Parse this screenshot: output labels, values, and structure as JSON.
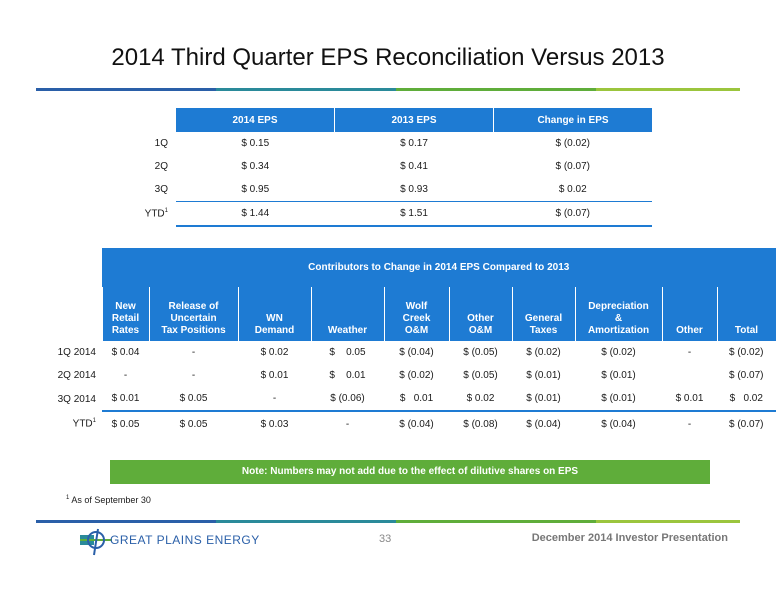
{
  "title": "2014 Third Quarter EPS Reconciliation Versus 2013",
  "eps_table": {
    "headers": [
      "2014 EPS",
      "2013 EPS",
      "Change in EPS"
    ],
    "rows": [
      {
        "label": "1Q",
        "eps2014": "$ 0.15",
        "eps2013": "$ 0.17",
        "change": "$ (0.02)"
      },
      {
        "label": "2Q",
        "eps2014": "$ 0.34",
        "eps2013": "$ 0.41",
        "change": "$ (0.07)"
      },
      {
        "label": "3Q",
        "eps2014": "$ 0.95",
        "eps2013": "$ 0.93",
        "change": "$ 0.02"
      },
      {
        "label": "YTD",
        "sup": "1",
        "eps2014": "$ 1.44",
        "eps2013": "$ 1.51",
        "change": "$ (0.07)"
      }
    ]
  },
  "contrib_table": {
    "title": "Contributors to Change in 2014 EPS Compared to 2013",
    "columns": [
      [
        "New",
        "Retail",
        "Rates"
      ],
      [
        "Release of",
        "Uncertain",
        "Tax Positions"
      ],
      [
        "WN",
        "Demand"
      ],
      [
        "Weather"
      ],
      [
        "Wolf",
        "Creek",
        "O&M"
      ],
      [
        "Other",
        "O&M"
      ],
      [
        "General",
        "Taxes"
      ],
      [
        "Depreciation",
        "&",
        "Amortization"
      ],
      [
        "Other"
      ],
      [
        "Total"
      ]
    ],
    "rows": [
      {
        "label": "1Q 2014",
        "values": [
          "$ 0.04",
          "-",
          "$ 0.02",
          "$    0.05",
          "$ (0.04)",
          "$ (0.05)",
          "$ (0.02)",
          "$ (0.02)",
          "-",
          "$ (0.02)"
        ]
      },
      {
        "label": "2Q 2014",
        "values": [
          "-",
          "-",
          "$ 0.01",
          "$    0.01",
          "$ (0.02)",
          "$ (0.05)",
          "$ (0.01)",
          "$ (0.01)",
          "",
          "$ (0.07)"
        ]
      },
      {
        "label": "3Q 2014",
        "values": [
          "$ 0.01",
          "$ 0.05",
          "-",
          "$ (0.06)",
          "$   0.01",
          "$ 0.02",
          "$ (0.01)",
          "$ (0.01)",
          "$ 0.01",
          "$   0.02"
        ]
      },
      {
        "label": "YTD",
        "sup": "1",
        "values": [
          "$ 0.05",
          "$ 0.05",
          "$ 0.03",
          "-",
          "$ (0.04)",
          "$ (0.08)",
          "$ (0.04)",
          "$ (0.04)",
          "-",
          "$ (0.07)"
        ]
      }
    ]
  },
  "note": "Note: Numbers may not add due to the effect of dilutive shares on EPS",
  "footnote": {
    "marker": "1",
    "text": "As of September 30"
  },
  "logo_text": "GREAT PLAINS ENERGY",
  "page_number": "33",
  "presentation": "December 2014 Investor Presentation",
  "colors": {
    "blue": "#1e7bd3",
    "green": "#5fad3a",
    "light_green": "#9bc53d",
    "teal": "#2a8a9a"
  }
}
